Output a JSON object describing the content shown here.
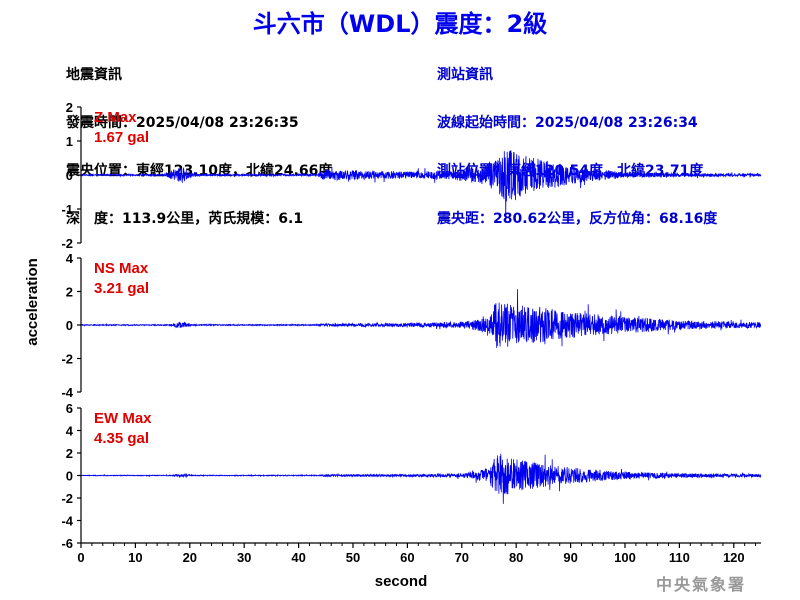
{
  "title": "斗六市（WDL）震度：2級",
  "event_info": {
    "header": "地震資訊",
    "origin_time": "發震時間：2025/04/08 23:26:35",
    "epicenter": "震央位置：東經123.10度，北緯24.66度",
    "depth_magnitude": "深　度：113.9公里，芮氏規模：6.1"
  },
  "station_info": {
    "header": "測站資訊",
    "wave_start": "波線起始時間：2025/04/08 23:26:34",
    "station_location": "測站位置：東經120.54度，北緯23.71度",
    "distance_azimuth": "震央距：280.62公里，反方位角：68.16度"
  },
  "watermark": "中央氣象署",
  "colors": {
    "trace": "#0000ee",
    "max_label": "#e00000",
    "title": "#0000ee"
  },
  "chart_data": {
    "type": "line",
    "xlabel": "second",
    "ylabel": "acceleration",
    "xlim": [
      0,
      125
    ],
    "xticks": [
      0,
      10,
      20,
      30,
      40,
      50,
      60,
      70,
      80,
      90,
      100,
      110,
      120
    ],
    "series": [
      {
        "name": "Z",
        "max_title": "Z Max",
        "max_value": "1.67 gal",
        "ylim": [
          -2,
          2
        ],
        "yticks": [
          -2,
          -1,
          0,
          1,
          2
        ],
        "envelope": [
          {
            "t": 0,
            "a": 0.03
          },
          {
            "t": 15.5,
            "a": 0.04
          },
          {
            "t": 17,
            "a": 0.3
          },
          {
            "t": 18.5,
            "a": 0.45
          },
          {
            "t": 20,
            "a": 0.15
          },
          {
            "t": 22,
            "a": 0.04
          },
          {
            "t": 43.5,
            "a": 0.05
          },
          {
            "t": 44.5,
            "a": 0.3
          },
          {
            "t": 50,
            "a": 0.25
          },
          {
            "t": 60,
            "a": 0.2
          },
          {
            "t": 68,
            "a": 0.25
          },
          {
            "t": 74,
            "a": 0.5
          },
          {
            "t": 77,
            "a": 1.0
          },
          {
            "t": 78.5,
            "a": 1.67
          },
          {
            "t": 81,
            "a": 1.1
          },
          {
            "t": 85,
            "a": 0.8
          },
          {
            "t": 92,
            "a": 0.4
          },
          {
            "t": 100,
            "a": 0.15
          },
          {
            "t": 110,
            "a": 0.1
          },
          {
            "t": 125,
            "a": 0.07
          }
        ]
      },
      {
        "name": "NS",
        "max_title": "NS Max",
        "max_value": "3.21 gal",
        "ylim": [
          -4,
          4
        ],
        "yticks": [
          -4,
          -2,
          0,
          2,
          4
        ],
        "envelope": [
          {
            "t": 0,
            "a": 0.05
          },
          {
            "t": 16.5,
            "a": 0.06
          },
          {
            "t": 17.5,
            "a": 0.35
          },
          {
            "t": 19,
            "a": 0.3
          },
          {
            "t": 20.5,
            "a": 0.06
          },
          {
            "t": 43.5,
            "a": 0.06
          },
          {
            "t": 44.5,
            "a": 0.15
          },
          {
            "t": 60,
            "a": 0.2
          },
          {
            "t": 70,
            "a": 0.35
          },
          {
            "t": 75,
            "a": 0.8
          },
          {
            "t": 76.5,
            "a": 3.21
          },
          {
            "t": 79,
            "a": 2.2
          },
          {
            "t": 84,
            "a": 2.0
          },
          {
            "t": 90,
            "a": 1.4
          },
          {
            "t": 100,
            "a": 0.9
          },
          {
            "t": 110,
            "a": 0.5
          },
          {
            "t": 125,
            "a": 0.3
          }
        ]
      },
      {
        "name": "EW",
        "max_title": "EW Max",
        "max_value": "4.35 gal",
        "ylim": [
          -6,
          6
        ],
        "yticks": [
          -6,
          -4,
          -2,
          0,
          2,
          4,
          6
        ],
        "envelope": [
          {
            "t": 0,
            "a": 0.05
          },
          {
            "t": 16.5,
            "a": 0.06
          },
          {
            "t": 17.5,
            "a": 0.2
          },
          {
            "t": 19.5,
            "a": 0.2
          },
          {
            "t": 20.5,
            "a": 0.06
          },
          {
            "t": 43.5,
            "a": 0.06
          },
          {
            "t": 44.5,
            "a": 0.15
          },
          {
            "t": 60,
            "a": 0.2
          },
          {
            "t": 70,
            "a": 0.3
          },
          {
            "t": 75,
            "a": 1.2
          },
          {
            "t": 77,
            "a": 4.35
          },
          {
            "t": 79,
            "a": 2.8
          },
          {
            "t": 84,
            "a": 2.0
          },
          {
            "t": 90,
            "a": 1.3
          },
          {
            "t": 100,
            "a": 0.6
          },
          {
            "t": 110,
            "a": 0.35
          },
          {
            "t": 125,
            "a": 0.25
          }
        ]
      }
    ]
  }
}
